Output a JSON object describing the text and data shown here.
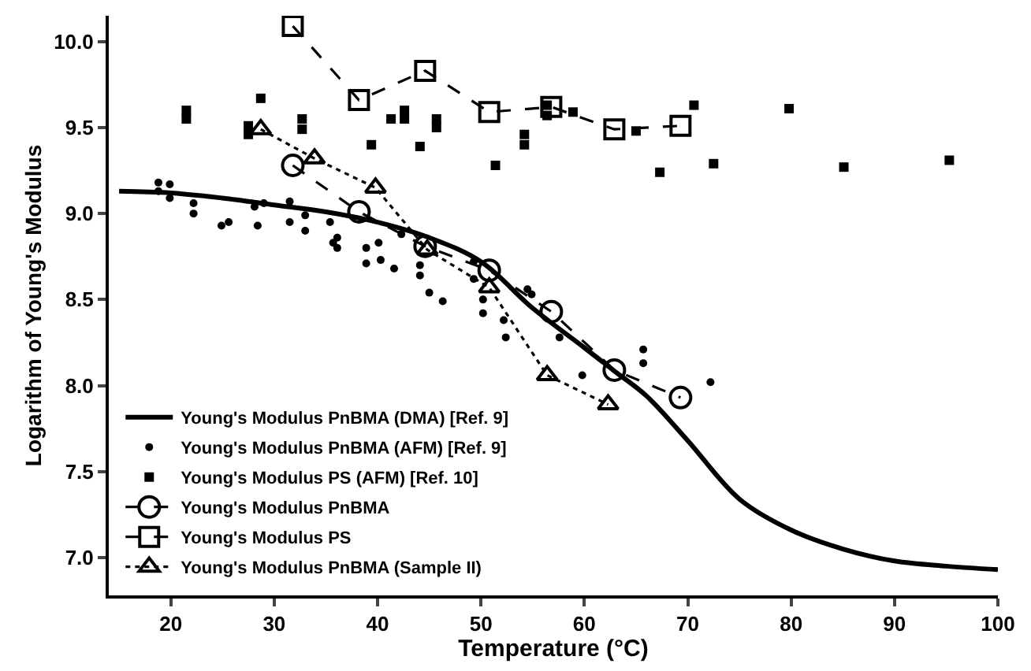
{
  "chart_data": {
    "type": "line",
    "xlabel": "Temperature (°C)",
    "ylabel": "Logarithm of Young's Modulus",
    "xlim": [
      14,
      100
    ],
    "xticks": [
      20,
      30,
      40,
      50,
      60,
      70,
      80,
      90,
      100
    ],
    "ylim": [
      6.78,
      10.15
    ],
    "yticks": [
      {
        "value": 7.0,
        "label": "7.0"
      },
      7.5,
      {
        "value": 8.0,
        "label": "8.0"
      },
      8.5,
      {
        "value": 9.0,
        "label": "9.0"
      },
      9.5,
      {
        "value": 10.0,
        "label": "10.0"
      }
    ],
    "legend": "bottom left",
    "series": [
      {
        "name": "Young's Modulus PnBMA (DMA) [Ref. 9]",
        "marker": "none",
        "line_style": "solid",
        "color": "#000000",
        "x": [
          15,
          20,
          25,
          30,
          35,
          40,
          45,
          50,
          55,
          60,
          63,
          66,
          70,
          75,
          80,
          85,
          90,
          95,
          100
        ],
        "values": [
          9.13,
          9.12,
          9.09,
          9.05,
          9.01,
          8.95,
          8.86,
          8.72,
          8.45,
          8.22,
          8.08,
          7.94,
          7.68,
          7.34,
          7.16,
          7.05,
          6.98,
          6.95,
          6.93
        ]
      },
      {
        "name": "Young's Modulus PnBMA (AFM) [Ref. 9]",
        "type": "scatter",
        "marker": "circle",
        "color": "#000000",
        "x": [
          18.8,
          18.8,
          19.9,
          19.9,
          22.2,
          22.2,
          24.9,
          25.6,
          28.4,
          28.1,
          29.0,
          31.5,
          31.5,
          33.0,
          33.0,
          35.4,
          35.7,
          36.1,
          36.1,
          38.9,
          38.9,
          40.1,
          40.3,
          41.6,
          42.3,
          44.1,
          44.1,
          45.0,
          46.3,
          49.3,
          49.3,
          50.2,
          50.2,
          52.2,
          52.4,
          54.5,
          54.9,
          57.6,
          59.8,
          65.7,
          65.7,
          72.2
        ],
        "values": [
          9.18,
          9.13,
          9.17,
          9.09,
          9.06,
          9.0,
          8.93,
          8.95,
          8.93,
          9.04,
          9.06,
          9.07,
          8.95,
          8.99,
          8.9,
          8.95,
          8.83,
          8.86,
          8.8,
          8.8,
          8.71,
          8.83,
          8.73,
          8.68,
          8.88,
          8.7,
          8.64,
          8.54,
          8.49,
          8.72,
          8.62,
          8.5,
          8.42,
          8.38,
          8.28,
          8.56,
          8.53,
          8.28,
          8.06,
          8.21,
          8.13,
          8.02
        ]
      },
      {
        "name": "Young's Modulus PS (AFM) [Ref. 10]",
        "type": "scatter",
        "marker": "square",
        "color": "#000000",
        "x": [
          21.5,
          21.5,
          28.7,
          27.5,
          27.5,
          32.7,
          32.7,
          39.4,
          41.3,
          42.6,
          42.6,
          44.1,
          45.7,
          45.7,
          51.4,
          54.2,
          54.2,
          56.4,
          56.4,
          58.9,
          65.0,
          67.3,
          70.6,
          72.5,
          79.8,
          85.1,
          95.3
        ],
        "values": [
          9.6,
          9.55,
          9.67,
          9.51,
          9.46,
          9.55,
          9.49,
          9.4,
          9.55,
          9.6,
          9.55,
          9.39,
          9.55,
          9.5,
          9.28,
          9.46,
          9.4,
          9.63,
          9.57,
          9.59,
          9.48,
          9.24,
          9.63,
          9.29,
          9.61,
          9.27,
          9.31
        ]
      },
      {
        "name": "Young's Modulus PnBMA",
        "marker": "circle",
        "line_style": "dashed",
        "color": "#000000",
        "x": [
          31.8,
          38.2,
          44.6,
          50.8,
          56.8,
          62.9,
          69.3
        ],
        "values": [
          9.28,
          9.01,
          8.81,
          8.67,
          8.43,
          8.09,
          7.93
        ]
      },
      {
        "name": "Young's Modulus PS",
        "marker": "square",
        "line_style": "dashed",
        "color": "#000000",
        "x": [
          31.8,
          38.2,
          44.6,
          50.8,
          56.8,
          62.9,
          69.3
        ],
        "values": [
          10.09,
          9.66,
          9.83,
          9.59,
          9.62,
          9.49,
          9.51
        ]
      },
      {
        "name": "Young's Modulus PnBMA (Sample II)",
        "marker": "triangle",
        "line_style": "dotted",
        "color": "#000000",
        "x": [
          28.7,
          33.9,
          39.8,
          44.8,
          50.8,
          56.4,
          62.3
        ],
        "values": [
          9.49,
          9.32,
          9.15,
          8.79,
          8.57,
          8.06,
          7.89
        ]
      }
    ]
  }
}
